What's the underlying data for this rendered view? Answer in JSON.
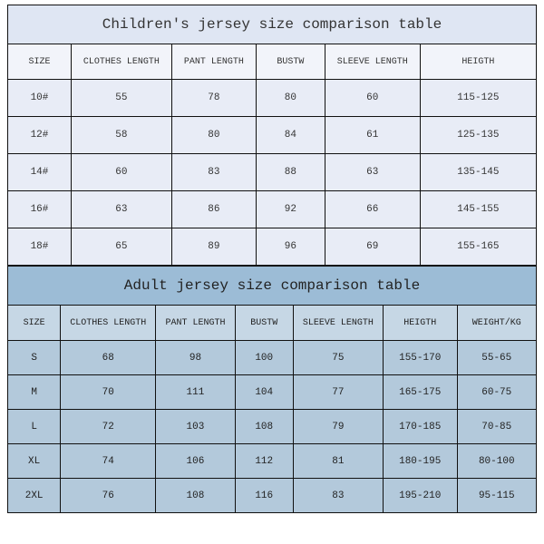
{
  "children": {
    "title": "Children's jersey size comparison table",
    "columns": [
      "SIZE",
      "CLOTHES LENGTH",
      "PANT LENGTH",
      "BUSTW",
      "SLEEVE LENGTH",
      "HEIGTH"
    ],
    "rows": [
      [
        "10#",
        "55",
        "78",
        "80",
        "60",
        "115-125"
      ],
      [
        "12#",
        "58",
        "80",
        "84",
        "61",
        "125-135"
      ],
      [
        "14#",
        "60",
        "83",
        "88",
        "63",
        "135-145"
      ],
      [
        "16#",
        "63",
        "86",
        "92",
        "66",
        "145-155"
      ],
      [
        "18#",
        "65",
        "89",
        "96",
        "69",
        "155-165"
      ]
    ],
    "col_widths": [
      "12%",
      "19%",
      "16%",
      "13%",
      "18%",
      "22%"
    ],
    "bg_title": "#dfe6f3",
    "bg_header": "#f2f4fa",
    "bg_data": "#e8ecf6"
  },
  "adult": {
    "title": "Adult jersey size comparison table",
    "columns": [
      "SIZE",
      "CLOTHES LENGTH",
      "PANT LENGTH",
      "BUSTW",
      "SLEEVE LENGTH",
      "HEIGTH",
      "WEIGHT/KG"
    ],
    "rows": [
      [
        "S",
        "68",
        "98",
        "100",
        "75",
        "155-170",
        "55-65"
      ],
      [
        "M",
        "70",
        "111",
        "104",
        "77",
        "165-175",
        "60-75"
      ],
      [
        "L",
        "72",
        "103",
        "108",
        "79",
        "170-185",
        "70-85"
      ],
      [
        "XL",
        "74",
        "106",
        "112",
        "81",
        "180-195",
        "80-100"
      ],
      [
        "2XL",
        "76",
        "108",
        "116",
        "83",
        "195-210",
        "95-115"
      ]
    ],
    "col_widths": [
      "10%",
      "18%",
      "15%",
      "11%",
      "17%",
      "14%",
      "15%"
    ],
    "bg_title": "#9cbcd6",
    "bg_header": "#c6d7e5",
    "bg_data": "#b3c9db"
  },
  "border_color": "#111111",
  "font_family": "Courier New"
}
